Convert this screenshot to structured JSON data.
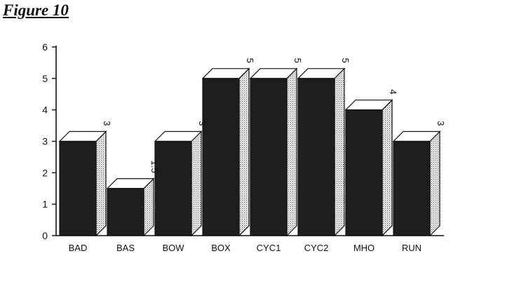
{
  "figure_label": "Figure 10",
  "chart_data": {
    "type": "bar",
    "categories": [
      "BAD",
      "BAS",
      "BOW",
      "BOX",
      "CYC1",
      "CYC2",
      "MHO",
      "RUN"
    ],
    "values": [
      3,
      1.5,
      3,
      5,
      5,
      5,
      4,
      3
    ],
    "data_labels": [
      "3",
      "1.5",
      "3",
      "5",
      "5",
      "5",
      "4",
      "3"
    ],
    "ylim": [
      0,
      6
    ],
    "yticks": [
      "0",
      "1",
      "2",
      "3",
      "4",
      "5",
      "6"
    ],
    "bar_style": "3d",
    "colors": {
      "bar_front": "#1e1e1e",
      "bar_side": "#d8d8d8",
      "bar_top": "#ffffff",
      "axis": "#111111"
    }
  }
}
